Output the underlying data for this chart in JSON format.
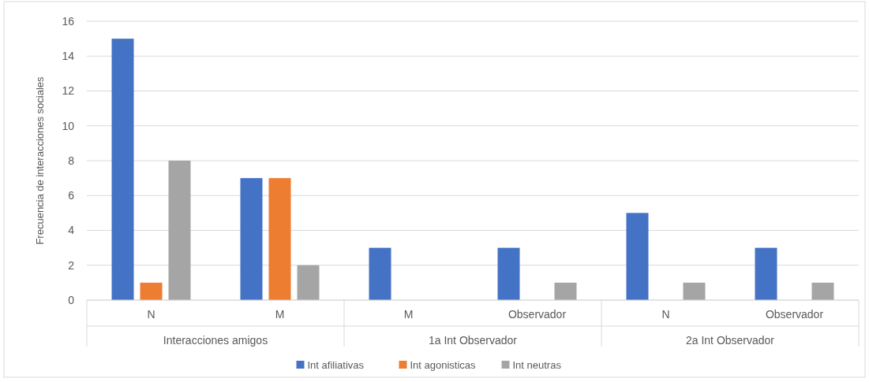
{
  "chart_data": {
    "type": "bar",
    "ylabel": "Frecuencia de interacciones sociales",
    "categories": [
      "N",
      "M",
      "M",
      "Observador",
      "N",
      "Observador"
    ],
    "annotations": [
      "Interacciones amigos",
      "1a Int Observador",
      "2a Int Observador"
    ],
    "series": [
      {
        "name": "Int afiliativas",
        "color": "#4472c4",
        "values": [
          15,
          7,
          3,
          3,
          5,
          3
        ]
      },
      {
        "name": "Int agonisticas",
        "color": "#ed7d31",
        "values": [
          1,
          7,
          null,
          null,
          null,
          null
        ]
      },
      {
        "name": "Int neutras",
        "color": "#a5a5a5",
        "values": [
          8,
          2,
          null,
          1,
          1,
          1
        ]
      }
    ],
    "ylim": [
      0,
      16
    ],
    "yticks": [
      0,
      2,
      4,
      6,
      8,
      10,
      12,
      14,
      16
    ],
    "grid": "y",
    "legend": "bottom"
  }
}
